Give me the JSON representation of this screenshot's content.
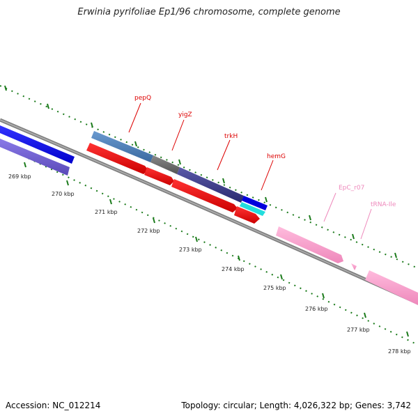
{
  "title": "Erwinia pyrifoliae Ep1/96 chromosome, complete genome",
  "footer": {
    "accession": "Accession: NC_012214",
    "topology": "Topology: circular; Length: 4,026,322 bp; Genes: 3,742"
  },
  "colors": {
    "backbone": "#808080",
    "tick": "#1a7a1a",
    "label_red": "#dd0000",
    "label_pink": "#ee88bb"
  },
  "ticks": [
    {
      "label": "269 kbp"
    },
    {
      "label": "270 kbp"
    },
    {
      "label": "271 kbp"
    },
    {
      "label": "272 kbp"
    },
    {
      "label": "273 kbp"
    },
    {
      "label": "274 kbp"
    },
    {
      "label": "275 kbp"
    },
    {
      "label": "276 kbp"
    },
    {
      "label": "277 kbp"
    },
    {
      "label": "278 kbp"
    }
  ],
  "gene_labels": [
    {
      "name": "pepQ",
      "color": "#dd0000"
    },
    {
      "name": "yigZ",
      "color": "#dd0000"
    },
    {
      "name": "trkH",
      "color": "#dd0000"
    },
    {
      "name": "hemG",
      "color": "#dd0000"
    },
    {
      "name": "EpC_r07",
      "color": "#ee88bb"
    },
    {
      "name": "tRNA-Ile",
      "color": "#ee88bb"
    }
  ]
}
